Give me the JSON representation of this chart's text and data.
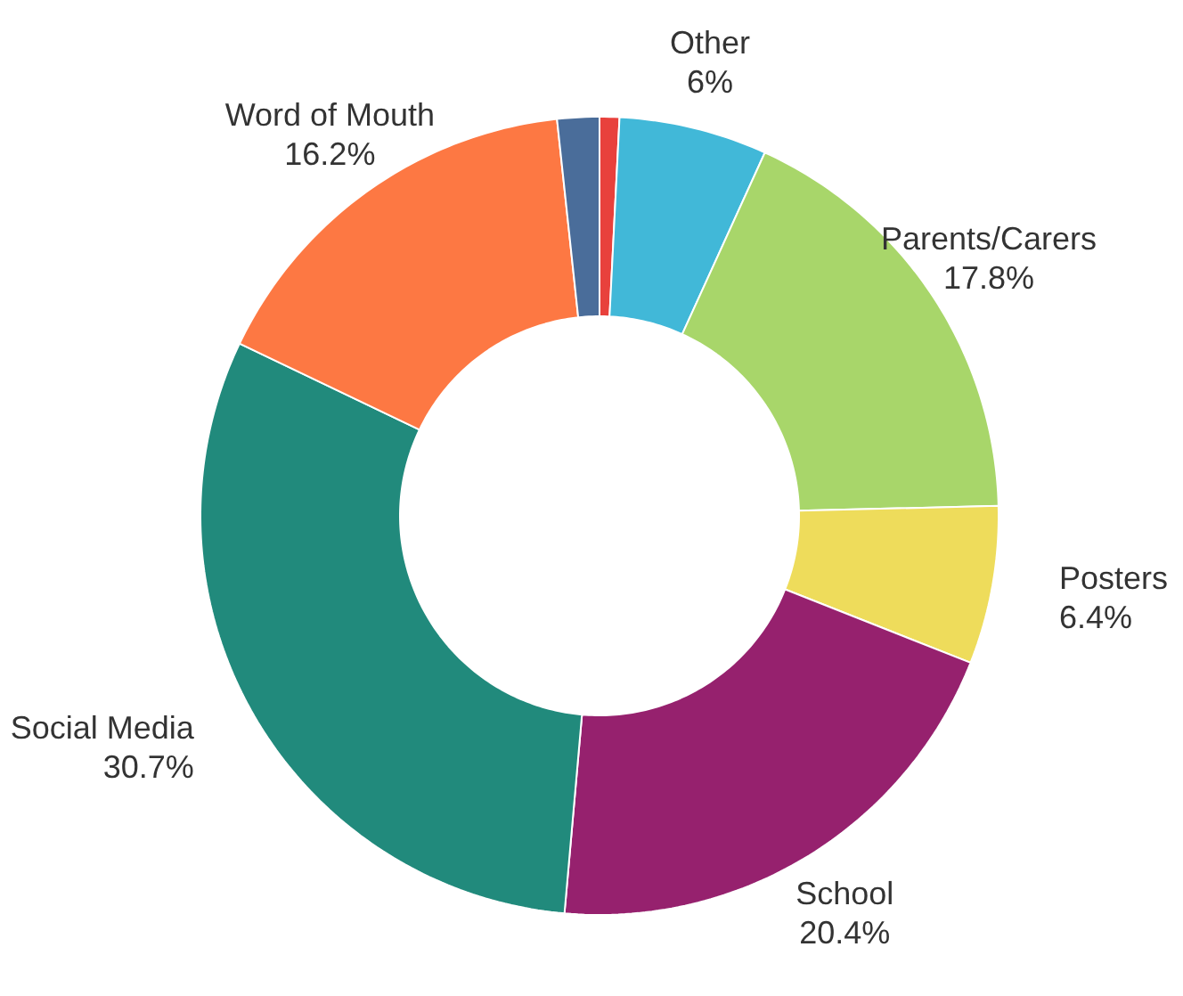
{
  "chart_data": {
    "type": "donut",
    "categories": [
      null,
      "Other",
      "Parents/Carers",
      "Posters",
      "School",
      "Social Media",
      "Word of Mouth",
      null
    ],
    "values": [
      0.8,
      6,
      17.8,
      6.4,
      20.4,
      30.7,
      16.2,
      1.7
    ],
    "value_labels": [
      null,
      "6%",
      "17.8%",
      "6.4%",
      "20.4%",
      "30.7%",
      "16.2%",
      null
    ],
    "colors": [
      "#e8413c",
      "#41b8d8",
      "#a8d66a",
      "#eedc5b",
      "#96216e",
      "#218a7c",
      "#fd7843",
      "#4a6d9a"
    ],
    "legend": false
  }
}
